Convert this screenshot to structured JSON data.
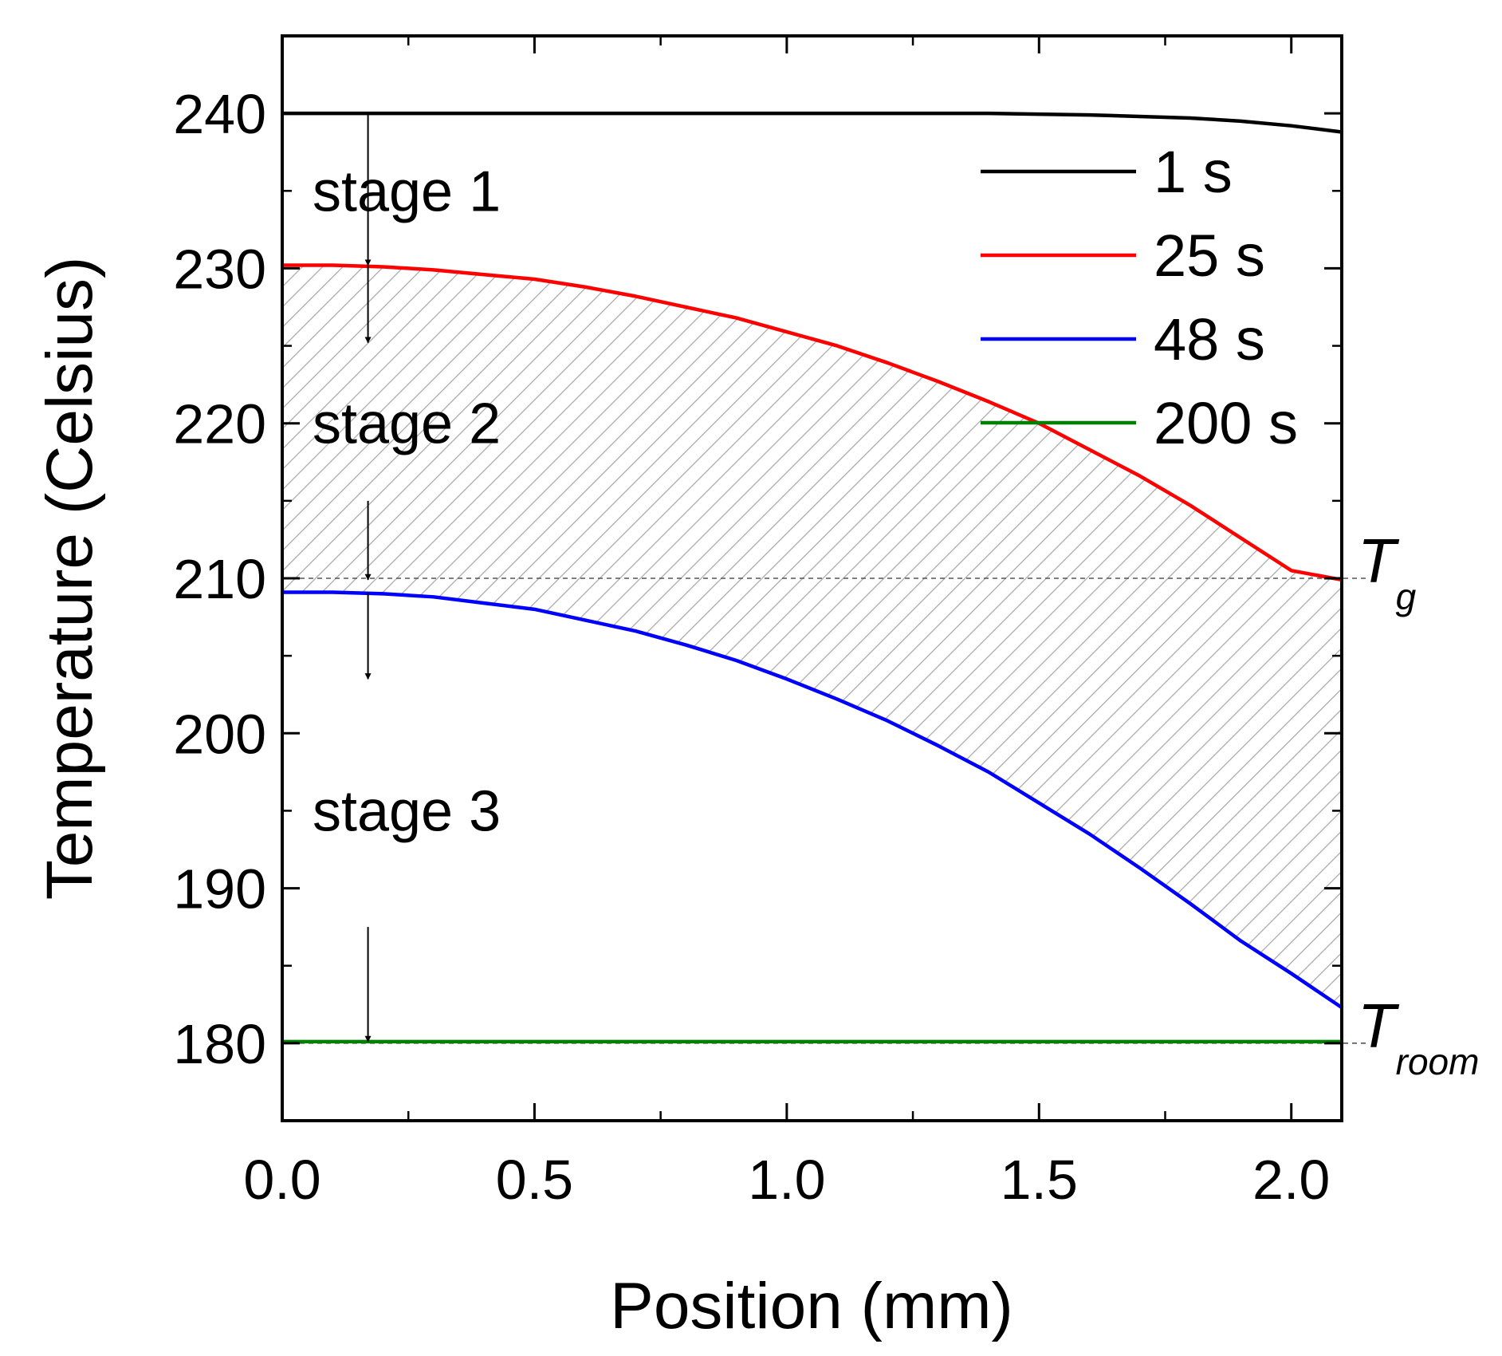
{
  "chart_data": {
    "type": "line",
    "title": "",
    "xlabel": "Position (mm)",
    "ylabel": "Temperature (Celsius)",
    "xlim": [
      0.0,
      2.1
    ],
    "ylim": [
      175,
      245
    ],
    "x_ticks": [
      0.0,
      0.5,
      1.0,
      1.5,
      2.0
    ],
    "x_tick_labels": [
      "0.0",
      "0.5",
      "1.0",
      "1.5",
      "2.0"
    ],
    "y_ticks": [
      180,
      190,
      200,
      210,
      220,
      230,
      240
    ],
    "y_tick_labels": [
      "180",
      "190",
      "200",
      "210",
      "220",
      "230",
      "240"
    ],
    "grid": false,
    "legend_position": "top-right",
    "series": [
      {
        "name": "1 s",
        "color": "#000000",
        "x": [
          0.0,
          0.5,
          1.0,
          1.4,
          1.6,
          1.8,
          1.9,
          2.0,
          2.1
        ],
        "y": [
          240.0,
          240.0,
          240.0,
          240.0,
          239.9,
          239.7,
          239.5,
          239.2,
          238.8
        ]
      },
      {
        "name": "25 s",
        "color": "#ff0000",
        "x": [
          0.0,
          0.1,
          0.2,
          0.3,
          0.4,
          0.5,
          0.6,
          0.7,
          0.8,
          0.9,
          1.0,
          1.1,
          1.2,
          1.3,
          1.4,
          1.5,
          1.6,
          1.7,
          1.8,
          1.9,
          2.0,
          2.1
        ],
        "y": [
          230.2,
          230.2,
          230.1,
          229.9,
          229.6,
          229.3,
          228.8,
          228.2,
          227.5,
          226.8,
          225.9,
          225.0,
          223.9,
          222.7,
          221.4,
          220.0,
          218.3,
          216.6,
          214.7,
          212.6,
          210.5,
          209.9
        ]
      },
      {
        "name": "48 s",
        "color": "#0000ff",
        "x": [
          0.0,
          0.1,
          0.2,
          0.3,
          0.4,
          0.5,
          0.6,
          0.7,
          0.8,
          0.9,
          1.0,
          1.1,
          1.2,
          1.3,
          1.4,
          1.5,
          1.6,
          1.7,
          1.8,
          1.9,
          2.0,
          2.1
        ],
        "y": [
          209.1,
          209.1,
          209.0,
          208.8,
          208.4,
          208.0,
          207.3,
          206.6,
          205.7,
          204.7,
          203.5,
          202.2,
          200.8,
          199.2,
          197.5,
          195.5,
          193.5,
          191.3,
          189.0,
          186.6,
          184.5,
          182.3
        ]
      },
      {
        "name": "200 s",
        "color": "#008000",
        "x": [
          0.0,
          0.5,
          1.0,
          1.5,
          2.0,
          2.1
        ],
        "y": [
          180.1,
          180.1,
          180.1,
          180.1,
          180.1,
          180.1
        ]
      }
    ],
    "reference_lines": [
      {
        "label": "T",
        "subscript": "g",
        "y": 210
      },
      {
        "label": "T",
        "subscript": "room",
        "y": 180
      }
    ],
    "shaded_region": {
      "between": [
        "25 s",
        "48 s"
      ],
      "pattern": "hatched"
    },
    "stage_arrows_x": 0.17,
    "annotations": [
      {
        "text": "stage 1",
        "x": 0.06,
        "y": 235
      },
      {
        "text": "stage 2",
        "x": 0.06,
        "y": 220
      },
      {
        "text": "stage 3",
        "x": 0.06,
        "y": 195
      }
    ],
    "stage_arrows": [
      {
        "from": 240,
        "to": 230.2
      },
      {
        "from": 230.2,
        "to": 225.2
      },
      {
        "from": 215,
        "to": 209.9
      },
      {
        "from": 209.1,
        "to": 203.5
      },
      {
        "from": 187.5,
        "to": 180.1
      }
    ]
  }
}
